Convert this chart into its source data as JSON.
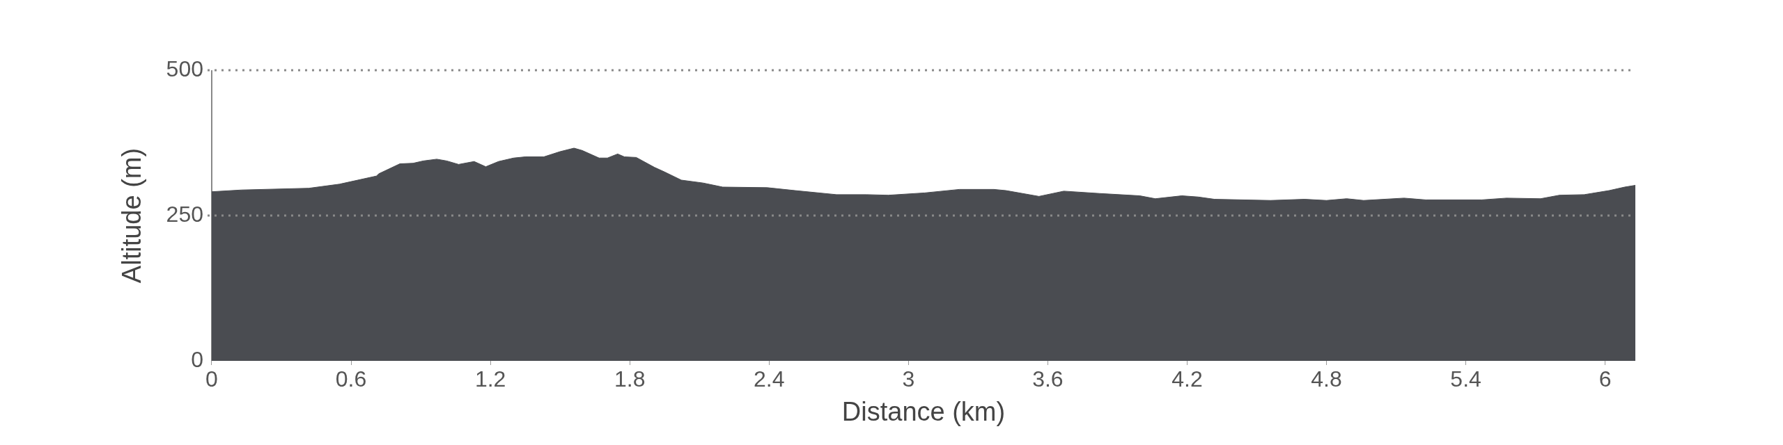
{
  "chart_data": {
    "type": "area",
    "xlabel": "Distance (km)",
    "ylabel": "Altitude (m)",
    "x": [
      0,
      0.128,
      0.418,
      0.55,
      0.709,
      0.72,
      0.81,
      0.867,
      0.911,
      0.969,
      1.012,
      1.063,
      1.13,
      1.18,
      1.235,
      1.3,
      1.35,
      1.43,
      1.5,
      1.56,
      1.595,
      1.668,
      1.704,
      1.748,
      1.777,
      1.828,
      1.906,
      1.95,
      2.022,
      2.116,
      2.2,
      2.392,
      2.512,
      2.69,
      2.82,
      2.913,
      3.07,
      3.22,
      3.368,
      3.42,
      3.562,
      3.669,
      3.822,
      3.996,
      4.063,
      4.177,
      4.247,
      4.318,
      4.559,
      4.706,
      4.8,
      4.887,
      4.96,
      5.134,
      5.228,
      5.468,
      5.575,
      5.722,
      5.803,
      5.91,
      6.017,
      6.084,
      6.13
    ],
    "series": [
      {
        "color": "#4a4c51",
        "values": [
          291,
          294,
          297,
          304,
          318,
          322,
          339,
          340,
          344,
          347,
          344,
          338,
          343,
          334,
          343,
          349,
          351,
          351,
          360,
          366,
          362,
          349,
          349,
          356,
          351,
          350,
          333,
          325,
          311,
          306,
          299,
          298,
          293,
          286,
          286,
          285,
          289,
          295,
          295,
          293,
          283,
          292,
          288,
          284,
          279,
          284,
          282,
          278,
          276,
          278,
          276,
          279,
          276,
          280,
          277,
          277,
          280,
          279,
          285,
          286,
          293,
          299,
          302
        ]
      }
    ],
    "xlim": [
      0,
      6.13
    ],
    "xticks": [
      0,
      0.6,
      1.2,
      1.8,
      2.4,
      3,
      3.6,
      4.2,
      4.8,
      5.4,
      6
    ],
    "ylim": [
      0,
      500
    ],
    "yticks": [
      0,
      250,
      500
    ],
    "grid": "y",
    "legend": false
  }
}
